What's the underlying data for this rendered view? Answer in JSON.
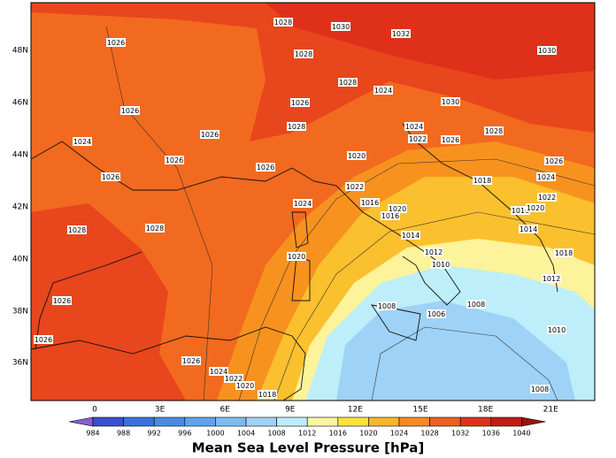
{
  "map": {
    "lat_labels": [
      "48N",
      "46N",
      "44N",
      "42N",
      "40N",
      "38N",
      "36N"
    ],
    "lon_labels": [
      "0",
      "3E",
      "6E",
      "9E",
      "12E",
      "15E",
      "18E",
      "21E"
    ],
    "contour_labels": [
      1028,
      1030,
      1032,
      1026,
      1028,
      1030,
      1028,
      1024,
      1026,
      1026,
      1030,
      1024,
      1028,
      1022,
      1026,
      1028,
      1024,
      1026,
      1026,
      1026,
      1020,
      1026,
      1026,
      1018,
      1024,
      1022,
      1022,
      1024,
      1016,
      1020,
      1016,
      1016,
      1020,
      1028,
      1028,
      1014,
      1014,
      1012,
      1018,
      1020,
      1010,
      1026,
      1012,
      1008,
      1006,
      1008,
      1010,
      1026,
      1026,
      1024,
      1022,
      1020,
      1018,
      1008
    ],
    "colorbar": {
      "title": "Mean Sea Level Pressure [hPa]",
      "levels": [
        984,
        988,
        992,
        996,
        1000,
        1004,
        1008,
        1012,
        1016,
        1020,
        1024,
        1028,
        1032,
        1036,
        1040
      ],
      "colors": [
        "#8a5fd0",
        "#3a4fd0",
        "#3e6fe0",
        "#4a8ae8",
        "#5ea2ee",
        "#7dbcf2",
        "#9ed2f6",
        "#bdeefa",
        "#fdf6a0",
        "#fde23a",
        "#fbb52a",
        "#f58a23",
        "#ef5f1d",
        "#e0321b",
        "#c41b17",
        "#a01010"
      ]
    }
  }
}
